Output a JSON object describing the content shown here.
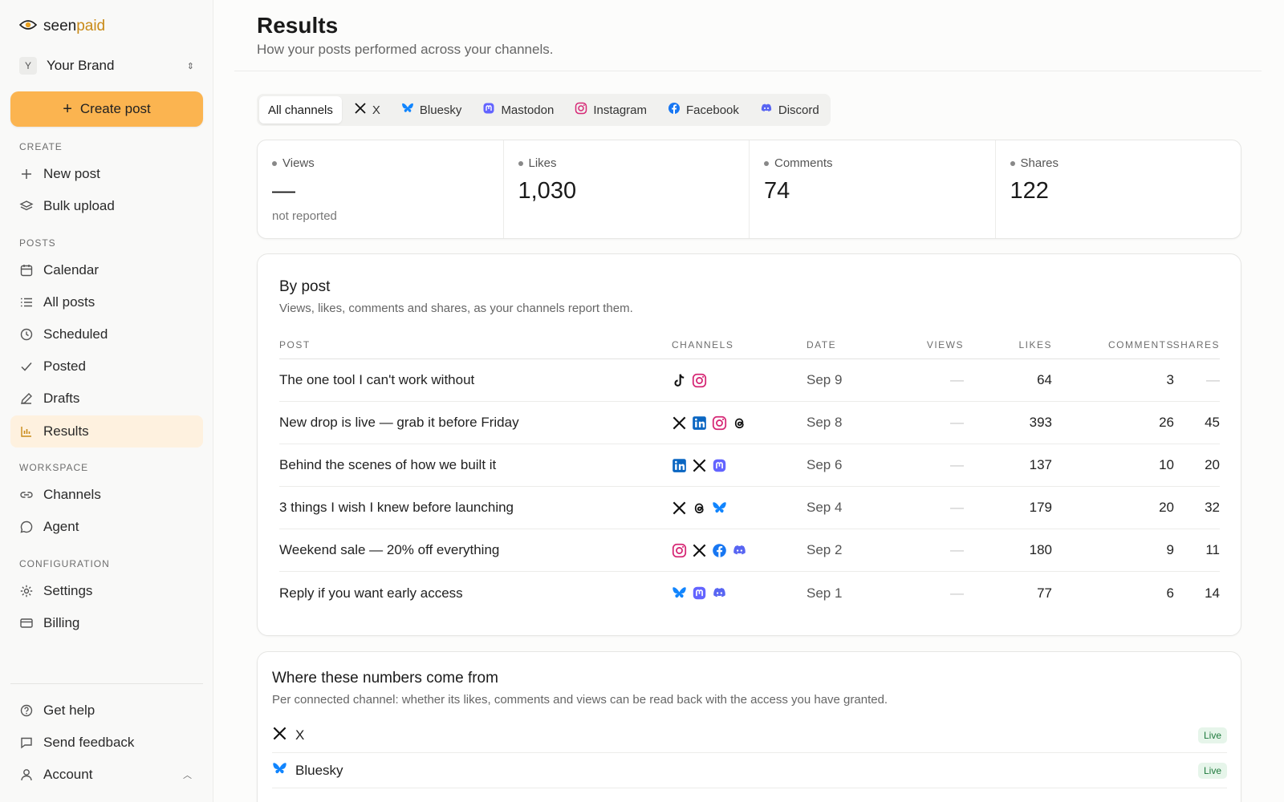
{
  "sidebar": {
    "logo_part1": "seen",
    "logo_part2": "paid",
    "brand_initial": "Y",
    "brand_name": "Your Brand",
    "create_button": "Create post",
    "sections": {
      "create": "CREATE",
      "posts": "POSTS",
      "workspace": "WORKSPACE",
      "configuration": "CONFIGURATION"
    },
    "items": {
      "new_post": "New post",
      "bulk_upload": "Bulk upload",
      "calendar": "Calendar",
      "all_posts": "All posts",
      "scheduled": "Scheduled",
      "posted": "Posted",
      "drafts": "Drafts",
      "results": "Results",
      "channels": "Channels",
      "agent": "Agent",
      "settings": "Settings",
      "billing": "Billing",
      "get_help": "Get help",
      "send_feedback": "Send feedback",
      "account": "Account"
    }
  },
  "header": {
    "title": "Results",
    "subtitle": "How your posts performed across your channels."
  },
  "tabs": [
    "All channels",
    "X",
    "Bluesky",
    "Mastodon",
    "Instagram",
    "Facebook",
    "Discord"
  ],
  "stats": [
    {
      "label": "Views",
      "value": "—",
      "note": "not reported"
    },
    {
      "label": "Likes",
      "value": "1,030",
      "note": ""
    },
    {
      "label": "Comments",
      "value": "74",
      "note": ""
    },
    {
      "label": "Shares",
      "value": "122",
      "note": ""
    }
  ],
  "by_post": {
    "title": "By post",
    "subtitle": "Views, likes, comments and shares, as your channels report them.",
    "columns": [
      "POST",
      "CHANNELS",
      "DATE",
      "VIEWS",
      "LIKES",
      "COMMENTS",
      "SHARES"
    ],
    "rows": [
      {
        "post": "The one tool I can't work without",
        "channels": [
          "tiktok",
          "instagram"
        ],
        "date": "Sep 9",
        "views": "—",
        "likes": "64",
        "comments": "3",
        "shares": "—"
      },
      {
        "post": "New drop is live — grab it before Friday",
        "channels": [
          "x",
          "linkedin",
          "instagram",
          "threads"
        ],
        "date": "Sep 8",
        "views": "—",
        "likes": "393",
        "comments": "26",
        "shares": "45"
      },
      {
        "post": "Behind the scenes of how we built it",
        "channels": [
          "linkedin",
          "x",
          "mastodon"
        ],
        "date": "Sep 6",
        "views": "—",
        "likes": "137",
        "comments": "10",
        "shares": "20"
      },
      {
        "post": "3 things I wish I knew before launching",
        "channels": [
          "x",
          "threads",
          "bluesky"
        ],
        "date": "Sep 4",
        "views": "—",
        "likes": "179",
        "comments": "20",
        "shares": "32"
      },
      {
        "post": "Weekend sale — 20% off everything",
        "channels": [
          "instagram",
          "x",
          "facebook",
          "discord"
        ],
        "date": "Sep 2",
        "views": "—",
        "likes": "180",
        "comments": "9",
        "shares": "11"
      },
      {
        "post": "Reply if you want early access",
        "channels": [
          "bluesky",
          "mastodon",
          "discord"
        ],
        "date": "Sep 1",
        "views": "—",
        "likes": "77",
        "comments": "6",
        "shares": "14"
      }
    ]
  },
  "sources": {
    "title": "Where these numbers come from",
    "subtitle": "Per connected channel: whether its likes, comments and views can be read back with the access you have granted.",
    "rows": [
      {
        "name": "X",
        "icon": "x",
        "status": "Live"
      },
      {
        "name": "Bluesky",
        "icon": "bluesky",
        "status": "Live"
      }
    ]
  },
  "colors": {
    "accent": "#fbb450",
    "active_nav_bg": "#fef1df",
    "instagram": "#d62976",
    "bluesky": "#1185fe",
    "mastodon": "#6364ff",
    "facebook": "#1877f2",
    "discord": "#5865f2",
    "linkedin": "#0a66c2",
    "live_badge": "#1f7a3d"
  }
}
